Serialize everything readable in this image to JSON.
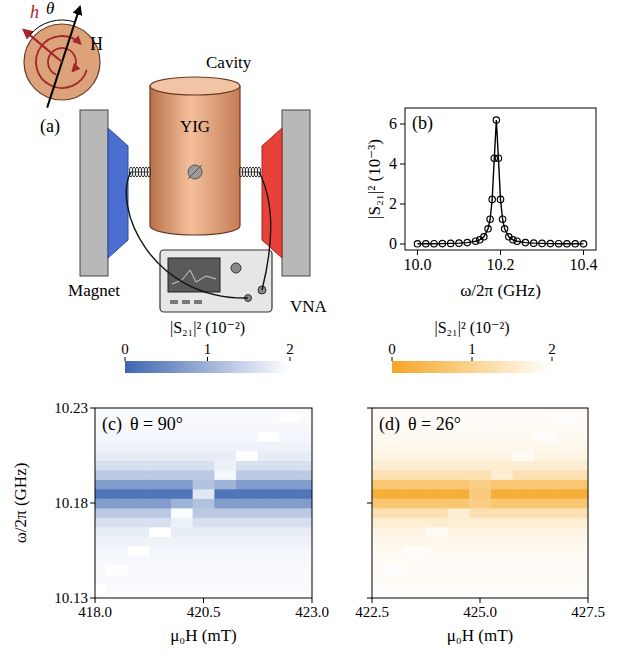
{
  "diagram": {
    "panel": "(a)",
    "labels": {
      "cavity": "Cavity",
      "yig": "YIG",
      "magnet": "Magnet",
      "vna": "VNA",
      "h": "h",
      "H": "H",
      "theta": "θ"
    }
  },
  "chart_data": [
    {
      "type": "scatter",
      "panel": "(b)",
      "color": "#000000",
      "marker": "circle",
      "line_style": "solid",
      "x_label": "ω/2π (GHz)",
      "y_label": "|S₂₁|² (10⁻³)",
      "x": [
        10.0,
        10.02,
        10.04,
        10.06,
        10.08,
        10.1,
        10.12,
        10.14,
        10.15,
        10.16,
        10.17,
        10.175,
        10.18,
        10.185,
        10.19,
        10.195,
        10.2,
        10.205,
        10.21,
        10.22,
        10.23,
        10.24,
        10.26,
        10.28,
        10.3,
        10.32,
        10.34,
        10.36,
        10.38,
        10.4
      ],
      "values": [
        0.01,
        0.012,
        0.015,
        0.02,
        0.029,
        0.043,
        0.07,
        0.14,
        0.21,
        0.36,
        0.76,
        1.24,
        2.23,
        4.29,
        6.2,
        4.29,
        2.23,
        1.24,
        0.76,
        0.36,
        0.21,
        0.14,
        0.07,
        0.043,
        0.029,
        0.02,
        0.015,
        0.012,
        0.01,
        0.008
      ],
      "xlim": [
        9.97,
        10.43
      ],
      "ylim": [
        -0.3,
        6.8
      ],
      "xticks": [
        {
          "value": 10.0,
          "label": "10.0"
        },
        {
          "value": 10.2,
          "label": "10.2"
        },
        {
          "value": 10.4,
          "label": "10.4"
        }
      ],
      "yticks": [
        0,
        2,
        4,
        6
      ]
    },
    {
      "type": "heatmap",
      "panel": "(c)",
      "title": "θ = 90°",
      "color": "#3d66b0",
      "x_label": "μ₀H (mT)",
      "y_label": "ω/2π (GHz)",
      "x": [
        418,
        418.5,
        419,
        419.5,
        420,
        420.5,
        421,
        421.5,
        422,
        422.5,
        423
      ],
      "y": [
        10.13,
        10.135,
        10.14,
        10.145,
        10.15,
        10.155,
        10.16,
        10.165,
        10.17,
        10.175,
        10.18,
        10.185,
        10.19,
        10.195,
        10.2,
        10.205,
        10.21,
        10.215,
        10.22,
        10.225,
        10.23
      ],
      "cells": [
        [
          1.96,
          1.96,
          1.96,
          1.96,
          1.96,
          1.96,
          1.96,
          1.96,
          1.96,
          1.96,
          1.96
        ],
        [
          2.0,
          1.95,
          1.95,
          1.95,
          1.95,
          1.95,
          1.95,
          1.95,
          1.95,
          1.95,
          1.95
        ],
        [
          1.94,
          1.94,
          1.94,
          1.94,
          1.94,
          1.94,
          1.94,
          1.94,
          1.94,
          1.94,
          1.94
        ],
        [
          1.93,
          2.0,
          1.93,
          1.93,
          1.93,
          1.93,
          1.93,
          1.93,
          1.93,
          1.93,
          1.93
        ],
        [
          1.91,
          1.91,
          1.91,
          1.91,
          1.91,
          1.91,
          1.91,
          1.91,
          1.91,
          1.91,
          1.91
        ],
        [
          1.88,
          1.88,
          2.0,
          1.88,
          1.88,
          1.88,
          1.88,
          1.88,
          1.88,
          1.88,
          1.88
        ],
        [
          1.83,
          1.83,
          1.83,
          1.83,
          1.83,
          1.83,
          1.83,
          1.83,
          1.83,
          1.83,
          1.83
        ],
        [
          1.75,
          1.75,
          1.75,
          2.0,
          1.75,
          1.75,
          1.75,
          1.75,
          1.75,
          1.75,
          1.75
        ],
        [
          1.6,
          1.6,
          1.6,
          1.6,
          1.8,
          1.6,
          1.6,
          1.6,
          1.6,
          1.6,
          1.6
        ],
        [
          1.3,
          1.3,
          1.3,
          1.3,
          1.95,
          1.3,
          1.3,
          1.3,
          1.3,
          1.3,
          1.3
        ],
        [
          0.71,
          0.71,
          0.71,
          0.71,
          1.0,
          1.2,
          0.71,
          0.71,
          0.71,
          0.71,
          0.71
        ],
        [
          0.2,
          0.2,
          0.2,
          0.2,
          0.2,
          1.7,
          0.2,
          0.2,
          0.2,
          0.2,
          0.2
        ],
        [
          0.71,
          0.71,
          0.71,
          0.71,
          0.71,
          1.2,
          1.0,
          0.71,
          0.71,
          0.71,
          0.71
        ],
        [
          1.3,
          1.3,
          1.3,
          1.3,
          1.3,
          1.3,
          1.9,
          1.3,
          1.3,
          1.3,
          1.3
        ],
        [
          1.6,
          1.6,
          1.6,
          1.6,
          1.6,
          1.6,
          1.8,
          1.6,
          1.6,
          1.6,
          1.6
        ],
        [
          1.75,
          1.75,
          1.75,
          1.75,
          1.75,
          1.75,
          1.75,
          2.0,
          1.75,
          1.75,
          1.75
        ],
        [
          1.83,
          1.83,
          1.83,
          1.83,
          1.83,
          1.83,
          1.83,
          1.83,
          1.83,
          1.83,
          1.83
        ],
        [
          1.88,
          1.88,
          1.88,
          1.88,
          1.88,
          1.88,
          1.88,
          1.88,
          2.0,
          1.88,
          1.88
        ],
        [
          1.91,
          1.91,
          1.91,
          1.91,
          1.91,
          1.91,
          1.91,
          1.91,
          1.91,
          1.91,
          1.91
        ],
        [
          1.93,
          1.93,
          1.93,
          1.93,
          1.93,
          1.93,
          1.93,
          1.93,
          1.93,
          2.0,
          1.93
        ],
        [
          1.94,
          1.94,
          1.94,
          1.94,
          1.94,
          1.94,
          1.94,
          1.94,
          1.94,
          1.94,
          1.94
        ]
      ],
      "xlim": [
        418,
        423
      ],
      "ylim": [
        10.13,
        10.23
      ],
      "xticks": [
        {
          "value": 418,
          "label": "418.0"
        },
        420.5,
        {
          "value": 423,
          "label": "423.0"
        }
      ],
      "yticks": [
        10.13,
        10.18,
        10.23
      ],
      "colorbar": {
        "label": "|S₂₁|² (10⁻²)",
        "range": [
          0,
          2
        ],
        "ticks": [
          0,
          1,
          2
        ]
      }
    },
    {
      "type": "heatmap",
      "panel": "(d)",
      "title": "θ = 26°",
      "color": "#f5a623",
      "tick_labels": "x",
      "x_label": "μ₀H (mT)",
      "x": [
        422.5,
        423,
        423.5,
        424,
        424.5,
        425,
        425.5,
        426,
        426.5,
        427,
        427.5
      ],
      "y": [
        10.13,
        10.135,
        10.14,
        10.145,
        10.15,
        10.155,
        10.16,
        10.165,
        10.17,
        10.175,
        10.18,
        10.185,
        10.19,
        10.195,
        10.2,
        10.205,
        10.21,
        10.215,
        10.22,
        10.225,
        10.23
      ],
      "cells": [
        [
          1.96,
          1.96,
          1.96,
          1.96,
          1.96,
          1.96,
          1.96,
          1.96,
          1.96,
          1.96,
          1.96
        ],
        [
          1.98,
          1.95,
          1.95,
          1.95,
          1.95,
          1.95,
          1.95,
          1.95,
          1.95,
          1.95,
          1.95
        ],
        [
          1.94,
          1.94,
          1.94,
          1.94,
          1.94,
          1.94,
          1.94,
          1.94,
          1.94,
          1.94,
          1.94
        ],
        [
          1.93,
          1.98,
          1.93,
          1.93,
          1.93,
          1.93,
          1.93,
          1.93,
          1.93,
          1.93,
          1.93
        ],
        [
          1.91,
          1.91,
          1.91,
          1.91,
          1.91,
          1.91,
          1.91,
          1.91,
          1.91,
          1.91,
          1.91
        ],
        [
          1.88,
          1.88,
          1.95,
          1.88,
          1.88,
          1.88,
          1.88,
          1.88,
          1.88,
          1.88,
          1.88
        ],
        [
          1.83,
          1.83,
          1.83,
          1.83,
          1.83,
          1.83,
          1.83,
          1.83,
          1.83,
          1.83,
          1.83
        ],
        [
          1.75,
          1.75,
          1.75,
          1.9,
          1.75,
          1.75,
          1.75,
          1.75,
          1.75,
          1.75,
          1.75
        ],
        [
          1.6,
          1.6,
          1.6,
          1.6,
          1.6,
          1.6,
          1.6,
          1.6,
          1.6,
          1.6,
          1.6
        ],
        [
          1.3,
          1.3,
          1.3,
          1.3,
          1.6,
          1.3,
          1.3,
          1.3,
          1.3,
          1.3,
          1.3
        ],
        [
          0.71,
          0.71,
          0.71,
          0.71,
          0.71,
          0.9,
          0.71,
          0.71,
          0.71,
          0.71,
          0.71
        ],
        [
          0.2,
          0.2,
          0.2,
          0.2,
          0.2,
          0.8,
          0.2,
          0.2,
          0.2,
          0.2,
          0.2
        ],
        [
          0.71,
          0.71,
          0.71,
          0.71,
          0.71,
          0.9,
          0.71,
          0.71,
          0.71,
          0.71,
          0.71
        ],
        [
          1.3,
          1.3,
          1.3,
          1.3,
          1.3,
          1.3,
          1.6,
          1.3,
          1.3,
          1.3,
          1.3
        ],
        [
          1.6,
          1.6,
          1.6,
          1.6,
          1.6,
          1.6,
          1.6,
          1.6,
          1.6,
          1.6,
          1.6
        ],
        [
          1.75,
          1.75,
          1.75,
          1.75,
          1.75,
          1.75,
          1.75,
          1.9,
          1.75,
          1.75,
          1.75
        ],
        [
          1.83,
          1.83,
          1.83,
          1.83,
          1.83,
          1.83,
          1.83,
          1.83,
          1.83,
          1.83,
          1.83
        ],
        [
          1.88,
          1.88,
          1.88,
          1.88,
          1.88,
          1.88,
          1.88,
          1.88,
          1.95,
          1.88,
          1.88
        ],
        [
          1.91,
          1.91,
          1.91,
          1.91,
          1.91,
          1.91,
          1.91,
          1.91,
          1.91,
          1.91,
          1.91
        ],
        [
          1.93,
          1.93,
          1.93,
          1.93,
          1.93,
          1.93,
          1.93,
          1.93,
          1.93,
          1.98,
          1.93
        ],
        [
          1.94,
          1.94,
          1.94,
          1.94,
          1.94,
          1.94,
          1.94,
          1.94,
          1.94,
          1.94,
          1.94
        ]
      ],
      "xlim": [
        422.5,
        427.5
      ],
      "ylim": [
        10.13,
        10.23
      ],
      "xticks": [
        422.5,
        {
          "value": 425,
          "label": "425.0"
        },
        427.5
      ],
      "yticks": [
        10.13,
        10.18,
        10.23
      ],
      "colorbar": {
        "label": "|S₂₁|² (10⁻²)",
        "range": [
          0,
          2
        ],
        "ticks": [
          0,
          1,
          2
        ]
      }
    }
  ]
}
